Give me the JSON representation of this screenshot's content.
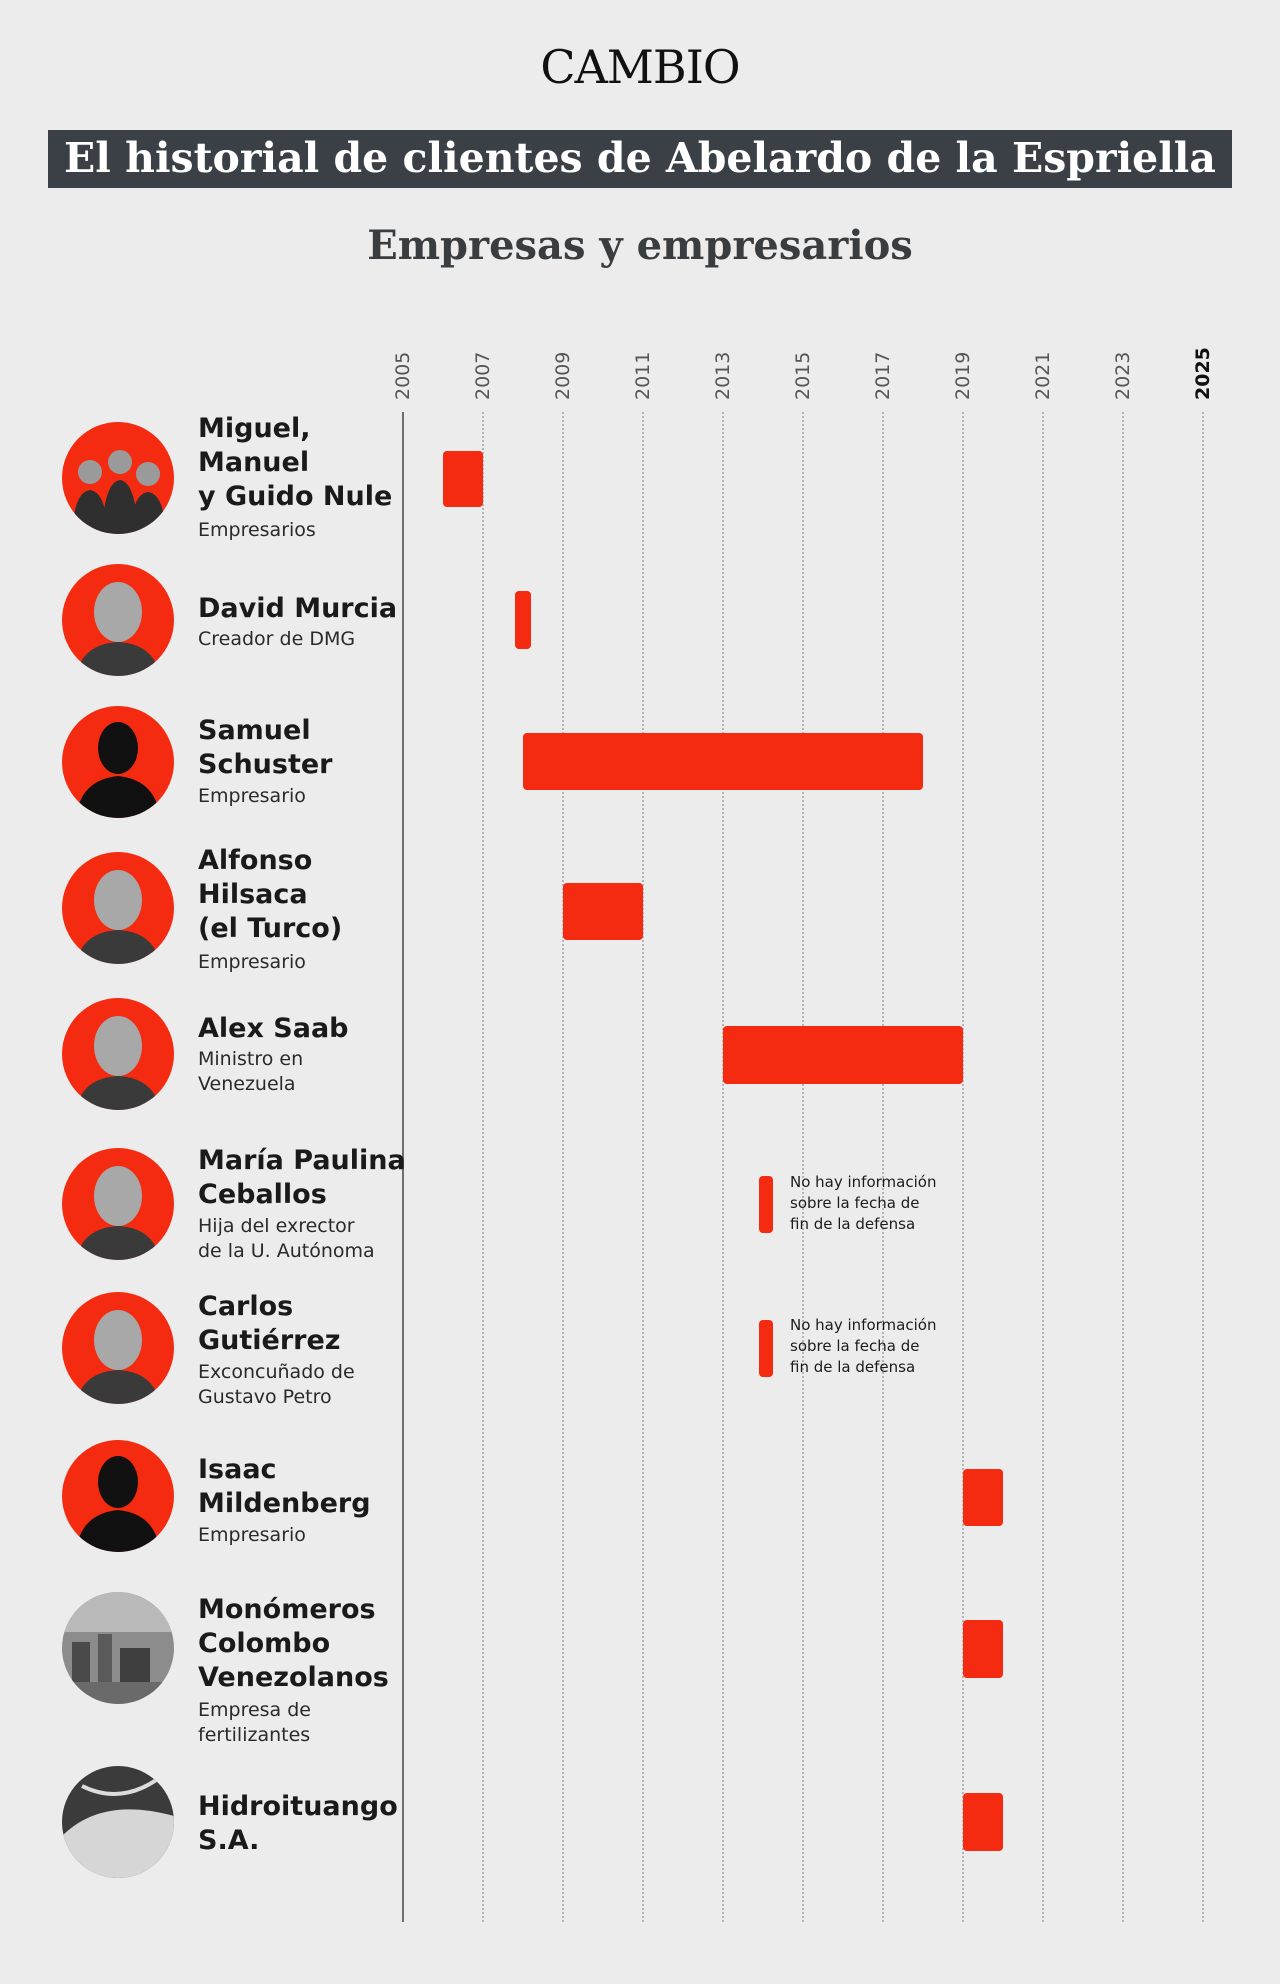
{
  "header": {
    "brand": "CAMBIO",
    "title": "El historial de clientes de Abelardo de la Espriella",
    "subtitle": "Empresas y empresarios"
  },
  "colors": {
    "bar": "#f42b10",
    "title_bg": "#3a4045",
    "avatar_bg": "#f42b10",
    "background": "#ececec"
  },
  "chart_data": {
    "type": "gantt",
    "x_ticks": [
      "2005",
      "2007",
      "2009",
      "2011",
      "2013",
      "2015",
      "2017",
      "2019",
      "2021",
      "2023",
      "2025"
    ],
    "xlim": [
      2005,
      2025
    ],
    "grid": true,
    "clients": [
      {
        "name": "Miguel,\nManuel\ny Guido Nule",
        "role": "Empresarios",
        "avatar_icon": "group-photo-icon",
        "start": 2006,
        "end": 2007,
        "note": ""
      },
      {
        "name": "David Murcia",
        "role": "Creador de DMG",
        "avatar_icon": "person-photo-icon",
        "start": 2007.8,
        "end": 2008.2,
        "note": ""
      },
      {
        "name": "Samuel\nSchuster",
        "role": "Empresario",
        "avatar_icon": "silhouette-icon",
        "start": 2008,
        "end": 2018,
        "note": ""
      },
      {
        "name": "Alfonso\nHilsaca\n(el Turco)",
        "role": "Empresario",
        "avatar_icon": "person-photo-icon",
        "start": 2009,
        "end": 2011,
        "note": ""
      },
      {
        "name": "Alex Saab",
        "role": "Ministro en\nVenezuela",
        "avatar_icon": "person-photo-icon",
        "start": 2013,
        "end": 2019,
        "note": ""
      },
      {
        "name": "María Paulina\nCeballos",
        "role": "Hija del exrector\nde la U. Autónoma",
        "avatar_icon": "person-photo-icon",
        "start": 2013.9,
        "end": 2014.25,
        "note": "No hay información\nsobre la fecha de\nfin de la defensa"
      },
      {
        "name": "Carlos\nGutiérrez",
        "role": "Exconcuñado de\nGustavo Petro",
        "avatar_icon": "person-photo-icon",
        "start": 2013.9,
        "end": 2014.25,
        "note": "No hay información\nsobre la fecha de\nfin de la defensa"
      },
      {
        "name": "Isaac\nMildenberg",
        "role": "Empresario",
        "avatar_icon": "silhouette-icon",
        "start": 2019,
        "end": 2020,
        "note": ""
      },
      {
        "name": "Monómeros\nColombo\nVenezolanos",
        "role": "Empresa de\nfertilizantes",
        "avatar_icon": "factory-photo-icon",
        "start": 2019,
        "end": 2020,
        "note": ""
      },
      {
        "name": "Hidroituango\nS.A.",
        "role": "",
        "avatar_icon": "dam-photo-icon",
        "start": 2019,
        "end": 2020,
        "note": ""
      }
    ]
  }
}
